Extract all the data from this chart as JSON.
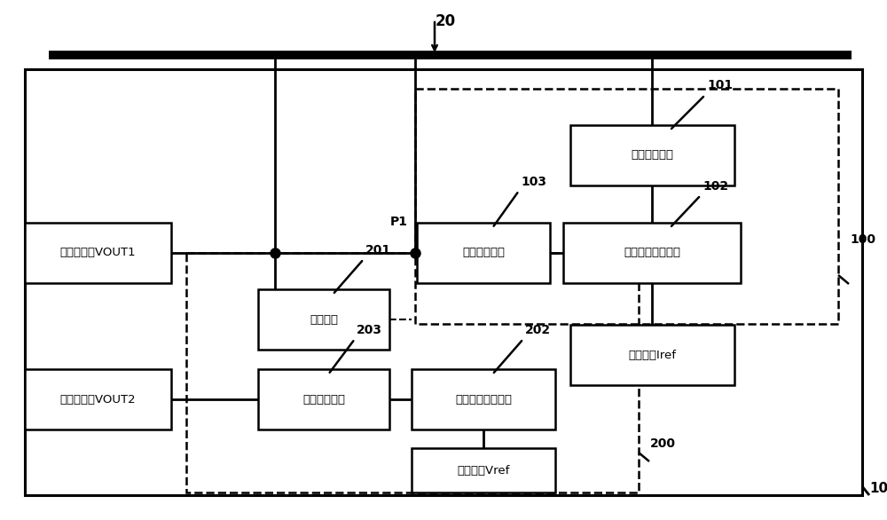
{
  "fig_width": 10.0,
  "fig_height": 5.86,
  "dpi": 100,
  "bg_color": "#ffffff",
  "label_20": "20",
  "label_10": "10",
  "label_100": "100",
  "label_200": "200",
  "label_101": "101",
  "label_102": "102",
  "label_103": "103",
  "label_201": "201",
  "label_202": "202",
  "label_203": "203",
  "label_P1": "P1",
  "box_dianliu_label": "电流采样单元",
  "box_diyi_wucha_label": "第一误差放大单元",
  "box_diyi_kuaodao_label": "第一跨导单元",
  "box_fendian_label": "分压单元",
  "box_cankao_dianliu_label": "参考电流Iref",
  "box_dier_kuaodao_label": "第二跨导单元",
  "box_dier_wucha_label": "第二误差放大单元",
  "box_cankao_dianya_label": "参考电压Vref",
  "box_diyi_shu_label": "第一输出端VOUT1",
  "box_dier_shu_label": "第二输出端VOUT2",
  "line_color": "#000000"
}
